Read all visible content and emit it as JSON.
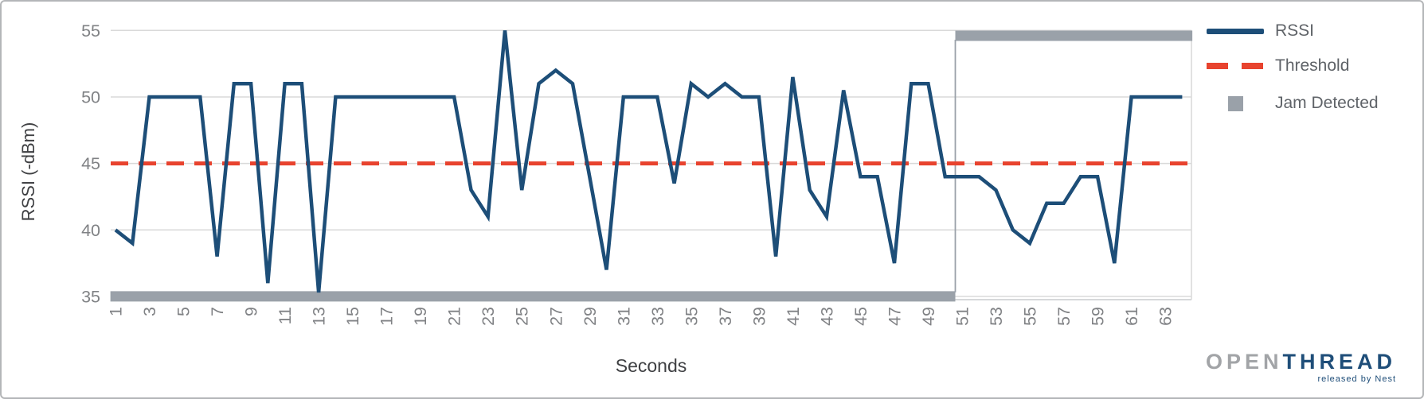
{
  "chart_data": {
    "type": "line",
    "title": "",
    "xlabel": "Seconds",
    "ylabel": "RSSI (-dBm)",
    "ylim": [
      35,
      55
    ],
    "grid": "horizontal",
    "legend_position": "top-right",
    "ytick_labels": [
      "35",
      "40",
      "45",
      "50",
      "55"
    ],
    "ytick_values": [
      35,
      40,
      45,
      50,
      55
    ],
    "xtick_labels": [
      "1",
      "3",
      "5",
      "7",
      "9",
      "11",
      "13",
      "15",
      "17",
      "19",
      "21",
      "23",
      "25",
      "27",
      "29",
      "31",
      "33",
      "35",
      "37",
      "39",
      "41",
      "43",
      "45",
      "47",
      "49",
      "51",
      "53",
      "55",
      "57",
      "59",
      "61",
      "63"
    ],
    "x": [
      1,
      2,
      3,
      4,
      5,
      6,
      7,
      8,
      9,
      10,
      11,
      12,
      13,
      14,
      15,
      16,
      17,
      18,
      19,
      20,
      21,
      22,
      23,
      24,
      25,
      26,
      27,
      28,
      29,
      30,
      31,
      32,
      33,
      34,
      35,
      36,
      37,
      38,
      39,
      40,
      41,
      42,
      43,
      44,
      45,
      46,
      47,
      48,
      49,
      50,
      51,
      52,
      53,
      54,
      55,
      56,
      57,
      58,
      59,
      60,
      61,
      62,
      63,
      64
    ],
    "series": [
      {
        "name": "RSSI",
        "style": "solid-line",
        "color": "#1d4e78",
        "values": [
          40,
          39,
          50,
          50,
          50,
          50,
          38,
          51,
          51,
          36,
          51,
          51,
          35.3,
          50,
          50,
          50,
          50,
          50,
          50,
          50,
          50,
          43,
          41,
          55,
          43,
          51,
          52,
          51,
          44,
          37,
          50,
          50,
          50,
          43.5,
          51,
          50,
          51,
          50,
          50,
          38,
          51.5,
          43,
          41,
          50.5,
          44,
          44,
          37.5,
          51,
          51,
          44,
          44,
          44,
          43,
          40,
          39,
          42,
          42,
          44,
          44,
          37.5,
          50,
          50,
          50,
          50
        ]
      },
      {
        "name": "Threshold",
        "style": "dashed-line",
        "color": "#e8432e",
        "constant_value": 45
      },
      {
        "name": "Jam Detected",
        "style": "thick-step",
        "color": "#9aa1a9",
        "off_value": 35,
        "on_value": 54.6,
        "detected_from_second": 51,
        "points": [
          [
            0.7,
            35
          ],
          [
            50.6,
            35
          ],
          [
            50.6,
            54.6
          ],
          [
            64.6,
            54.6
          ]
        ]
      }
    ]
  },
  "axis": {
    "x_title": "Seconds",
    "y_title": "RSSI (-dBm)"
  },
  "colors": {
    "rssi_line": "#1d4e78",
    "threshold_line": "#e8432e",
    "jam_bar": "#9aa1a9",
    "gridline": "#d9d9d9",
    "axis_baseline": "#c9cbcd",
    "tick_label": "#808285",
    "legend_text": "#5f6368",
    "axis_title_text": "#3f4043",
    "frame_border": "#b4b6b8"
  },
  "logo": {
    "part1": "OPEN",
    "part2": "THREAD",
    "tagline": "released by Nest"
  }
}
